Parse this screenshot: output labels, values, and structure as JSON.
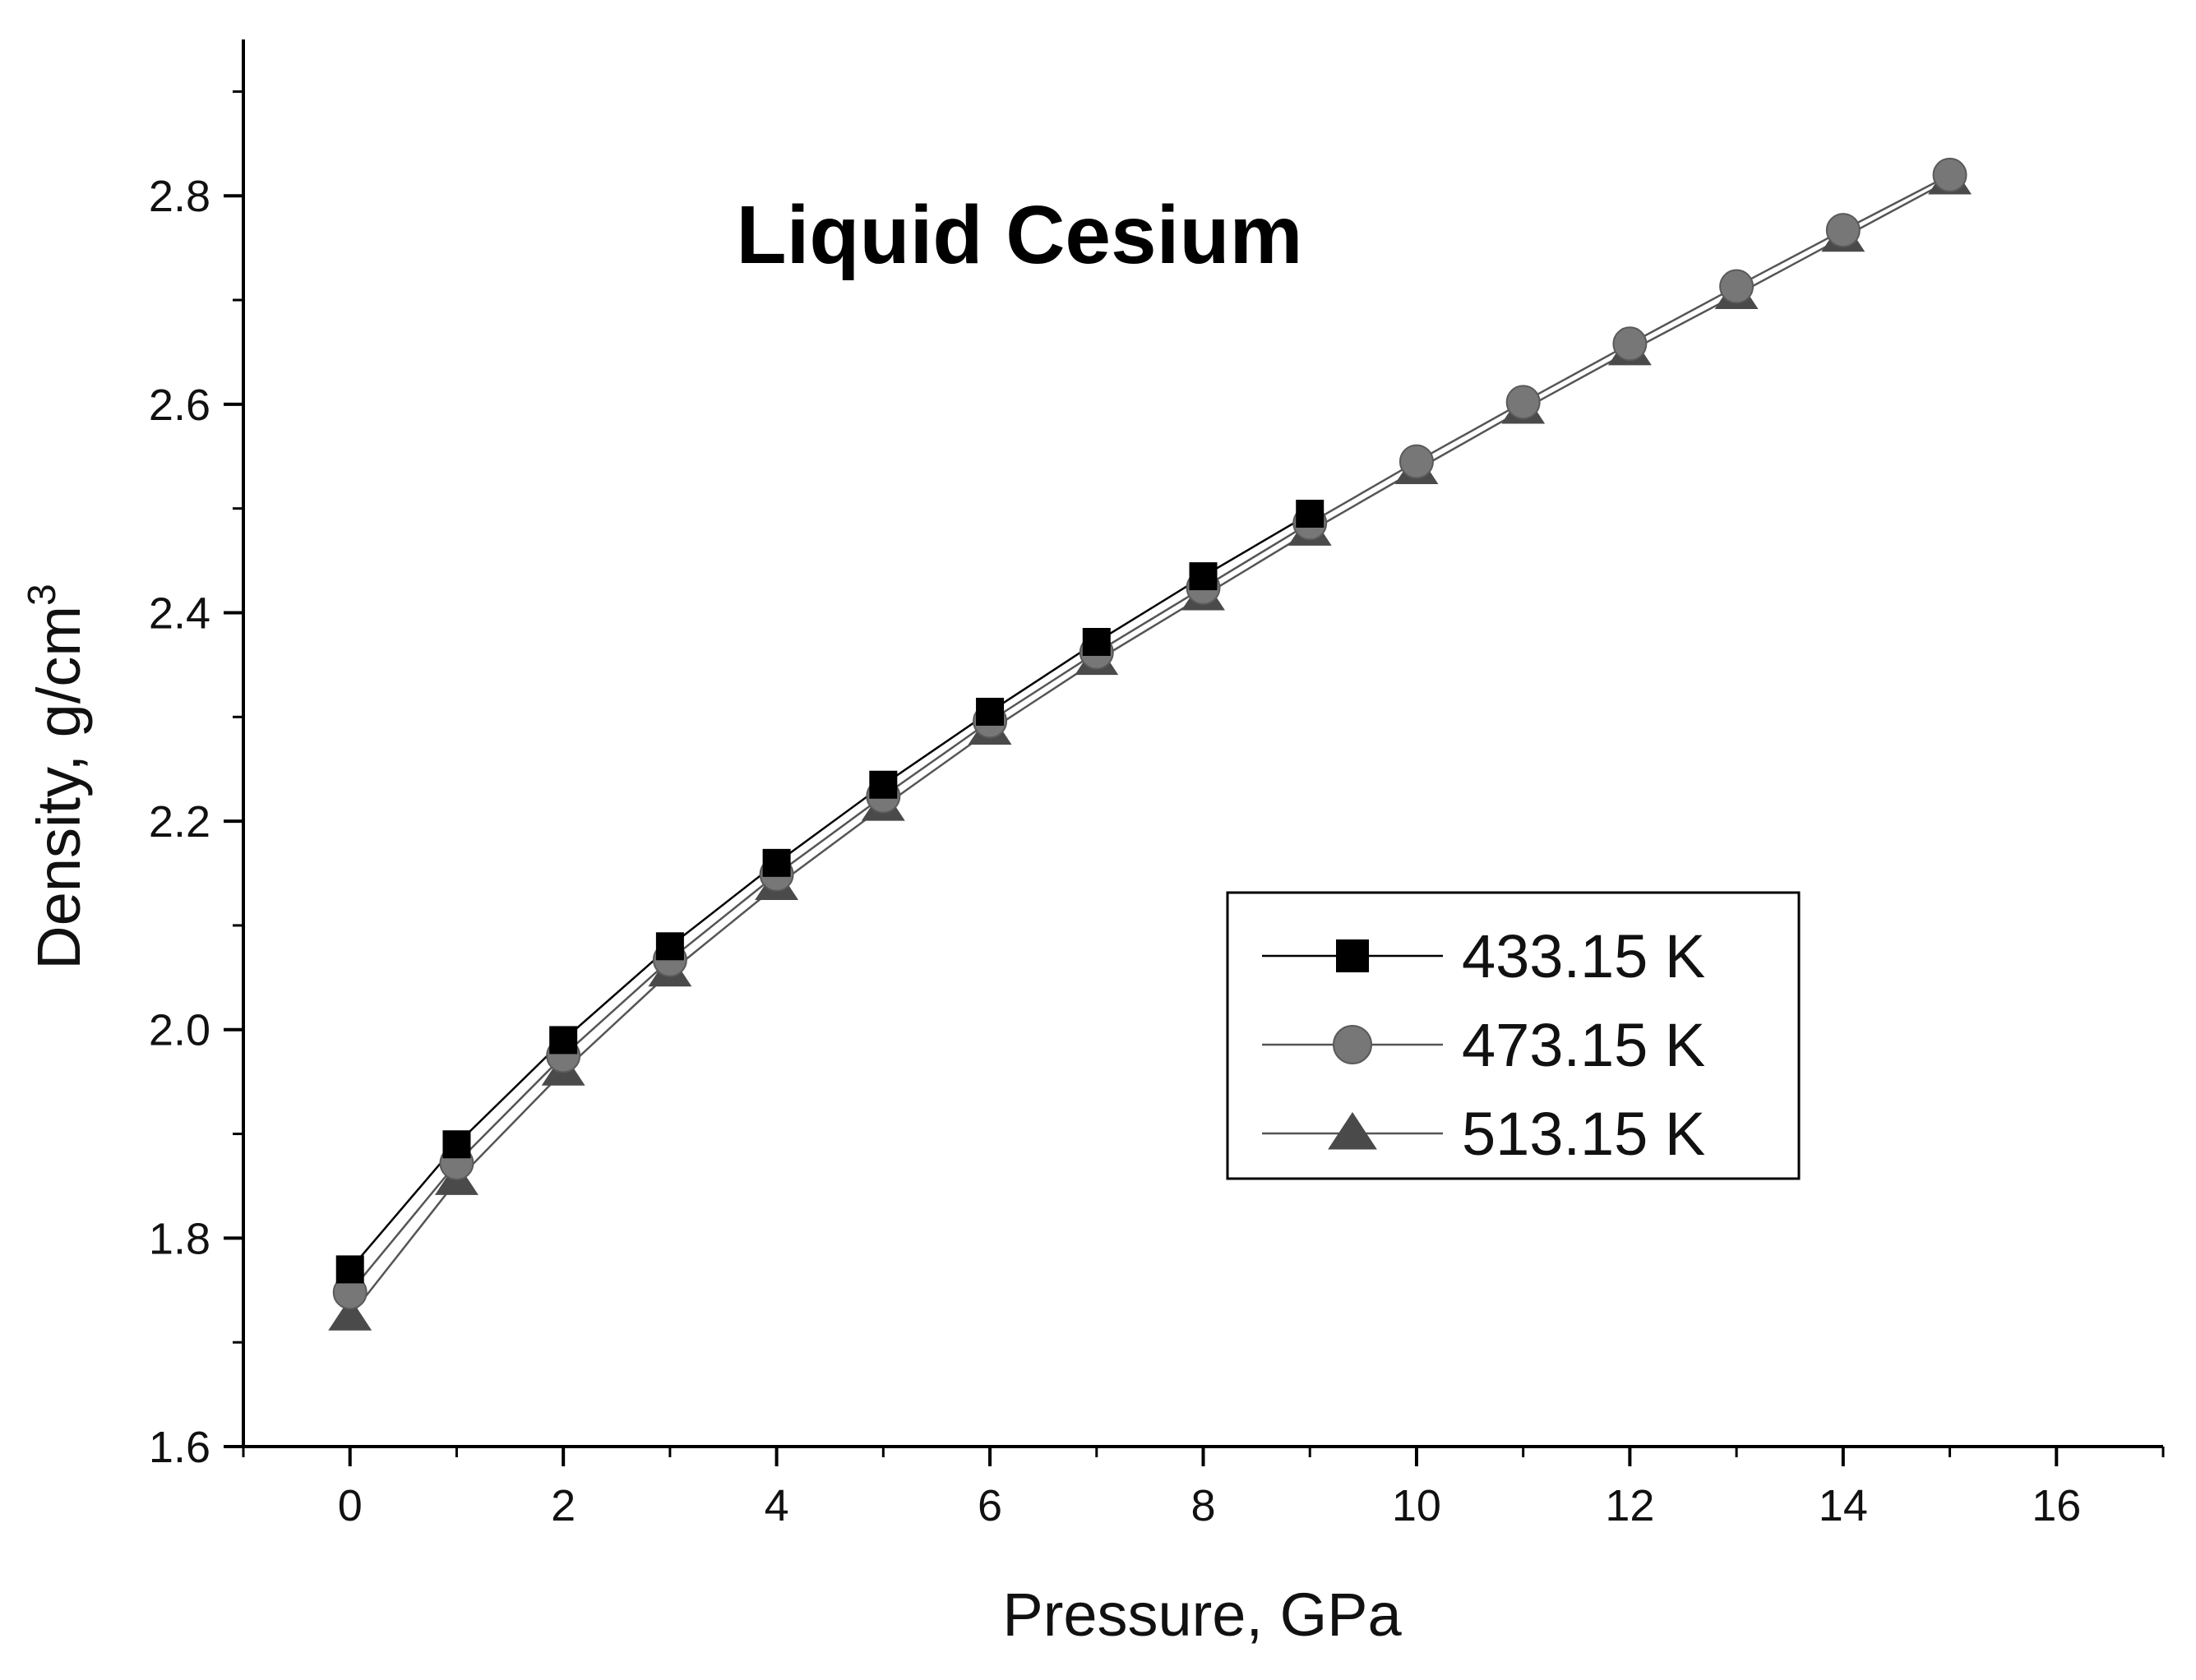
{
  "chart_data": {
    "type": "line",
    "title": "Liquid Cesium",
    "xlabel": "Pressure, GPa",
    "ylabel_main": "Density, g/cm",
    "ylabel_sup": "3",
    "xlim": [
      -1,
      17
    ],
    "ylim": [
      1.6,
      2.95
    ],
    "x_ticks": [
      0,
      2,
      4,
      6,
      8,
      10,
      12,
      14,
      16
    ],
    "y_ticks": [
      "1.6",
      "1.8",
      "2.0",
      "2.2",
      "2.4",
      "2.6",
      "2.8"
    ],
    "grid": false,
    "legend_position": "right",
    "series": [
      {
        "name": "433.15 K",
        "marker": "square",
        "color": "#000000",
        "x": [
          0,
          1,
          2,
          3,
          4,
          5,
          6,
          7,
          8,
          9
        ],
        "values": [
          1.77,
          1.89,
          1.99,
          2.08,
          2.16,
          2.235,
          2.305,
          2.372,
          2.435,
          2.495
        ]
      },
      {
        "name": "473.15 K",
        "marker": "circle",
        "color": "#777777",
        "x": [
          0,
          1,
          2,
          3,
          4,
          5,
          6,
          7,
          8,
          9,
          10,
          11,
          12,
          13,
          14,
          15
        ],
        "values": [
          1.748,
          1.872,
          1.975,
          2.067,
          2.149,
          2.224,
          2.296,
          2.362,
          2.424,
          2.486,
          2.545,
          2.602,
          2.658,
          2.713,
          2.767,
          2.82
        ]
      },
      {
        "name": "513.15 K",
        "marker": "triangle",
        "color": "#4a4a4a",
        "x": [
          0,
          1,
          2,
          3,
          4,
          5,
          6,
          7,
          8,
          9,
          10,
          11,
          12,
          13,
          14,
          15
        ],
        "values": [
          1.725,
          1.855,
          1.96,
          2.055,
          2.138,
          2.214,
          2.287,
          2.354,
          2.416,
          2.478,
          2.537,
          2.595,
          2.651,
          2.705,
          2.76,
          2.815
        ]
      }
    ]
  }
}
